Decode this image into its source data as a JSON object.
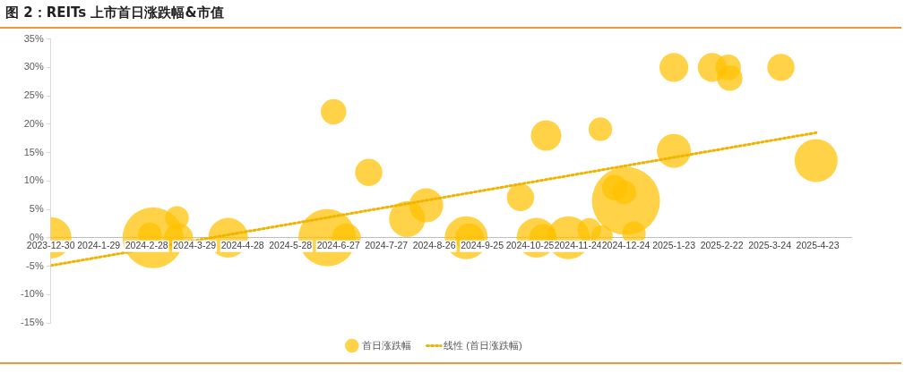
{
  "chart_data": {
    "type": "bubble",
    "title": "图 2：REITs 上市首日涨跌幅&市值",
    "series": [
      {
        "name": "首日涨跌幅",
        "color": "#ffc000",
        "x": [
          "2023-12-30",
          "2024-03-03",
          "2024-03-01",
          "2024-03-18",
          "2024-03-19",
          "2024-04-19",
          "2024-06-20",
          "2024-06-24",
          "2024-07-02",
          "2024-07-16",
          "2024-08-09",
          "2024-08-21",
          "2024-09-15",
          "2024-09-17",
          "2024-10-19",
          "2024-11-04",
          "2024-10-29",
          "2024-11-02",
          "2024-11-18",
          "2024-12-01",
          "2024-12-08",
          "2024-12-09",
          "2024-12-17",
          "2024-12-23",
          "2024-12-24",
          "2024-12-29",
          "2025-01-23",
          "2025-01-23",
          "2025-02-16",
          "2025-02-26",
          "2025-02-27",
          "2025-03-31",
          "2025-04-22"
        ],
        "values": [
          0,
          0,
          0.6,
          3.5,
          0,
          0,
          0,
          22.2,
          0,
          11.5,
          3.3,
          5.7,
          0,
          0,
          7.1,
          18,
          0,
          0,
          0,
          1.4,
          19.1,
          0.3,
          8.8,
          8.0,
          6.5,
          0.8,
          30,
          15.3,
          30,
          30,
          28.1,
          30,
          13.6
        ],
        "sizes": [
          0.37,
          0.8,
          0.12,
          0.12,
          0.18,
          0.34,
          0.71,
          0.14,
          0.18,
          0.16,
          0.28,
          0.25,
          0.4,
          0.18,
          0.16,
          0.2,
          0.34,
          0.16,
          0.4,
          0.12,
          0.12,
          0.1,
          0.14,
          0.12,
          1,
          0.12,
          0.18,
          0.25,
          0.18,
          0.14,
          0.14,
          0.16,
          0.4
        ]
      },
      {
        "name": "线性 (首日涨跌幅)",
        "type": "line",
        "color": "#f0b400",
        "line_style": "dotted",
        "marker": "none",
        "x": [
          "2023-12-30",
          "2025-04-22"
        ],
        "values": [
          -4.9,
          18.5
        ]
      }
    ],
    "xlim": [
      "2023-12-30",
      "2025-05-14"
    ],
    "xticks": [
      {
        "value": "2023-12-30",
        "label": "2023-12-30"
      },
      {
        "value": "2024-01-29",
        "label": "2024-1-29"
      },
      {
        "value": "2024-02-28",
        "label": "2024-2-28"
      },
      {
        "value": "2024-03-29",
        "label": "2024-3-29"
      },
      {
        "value": "2024-04-28",
        "label": "2024-4-28"
      },
      {
        "value": "2024-05-28",
        "label": "2024-5-28"
      },
      {
        "value": "2024-06-27",
        "label": "2024-6-27"
      },
      {
        "value": "2024-07-27",
        "label": "2024-7-27"
      },
      {
        "value": "2024-08-26",
        "label": "2024-8-26"
      },
      {
        "value": "2024-09-25",
        "label": "2024-9-25"
      },
      {
        "value": "2024-10-25",
        "label": "2024-10-25"
      },
      {
        "value": "2024-11-24",
        "label": "2024-11-24"
      },
      {
        "value": "2024-12-24",
        "label": "2024-12-24"
      },
      {
        "value": "2025-01-23",
        "label": "2025-1-23"
      },
      {
        "value": "2025-02-22",
        "label": "2025-2-22"
      },
      {
        "value": "2025-03-24",
        "label": "2025-3-24"
      },
      {
        "value": "2025-04-23",
        "label": "2025-4-23"
      }
    ],
    "ylim": [
      -15,
      35
    ],
    "yticks": [
      {
        "value": -15,
        "label": "-15%"
      },
      {
        "value": -10,
        "label": "-10%"
      },
      {
        "value": -5,
        "label": "-5%"
      },
      {
        "value": 0,
        "label": "0%"
      },
      {
        "value": 5,
        "label": "5%"
      },
      {
        "value": 10,
        "label": "10%"
      },
      {
        "value": 15,
        "label": "15%"
      },
      {
        "value": 20,
        "label": "20%"
      },
      {
        "value": 25,
        "label": "25%"
      },
      {
        "value": 30,
        "label": "30%"
      },
      {
        "value": 35,
        "label": "35%"
      }
    ],
    "grid": false,
    "legend": "bottom"
  }
}
